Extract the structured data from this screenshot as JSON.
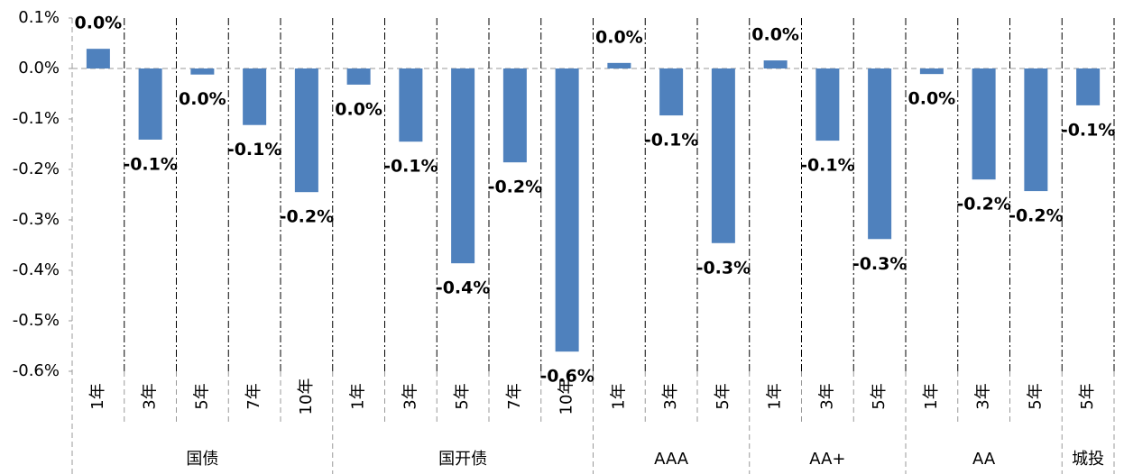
{
  "chart_data": {
    "type": "bar",
    "groups": [
      {
        "name": "国债",
        "categories": [
          "1年",
          "3年",
          "5年",
          "7年",
          "10年"
        ]
      },
      {
        "name": "国开债",
        "categories": [
          "1年",
          "3年",
          "5年",
          "7年",
          "10年"
        ]
      },
      {
        "name": "AAA",
        "categories": [
          "1年",
          "3年",
          "5年"
        ]
      },
      {
        "name": "AA+",
        "categories": [
          "1年",
          "3年",
          "5年"
        ]
      },
      {
        "name": "AA",
        "categories": [
          "1年",
          "3年",
          "5年"
        ]
      },
      {
        "name": "城投",
        "categories": [
          "5年"
        ]
      }
    ],
    "values": [
      0.039,
      -0.141,
      -0.012,
      -0.112,
      -0.245,
      -0.032,
      -0.145,
      -0.386,
      -0.186,
      -0.561,
      0.011,
      -0.093,
      -0.346,
      0.016,
      -0.143,
      -0.338,
      -0.011,
      -0.22,
      -0.243,
      -0.073
    ],
    "value_labels": [
      "0.0%",
      "-0.1%",
      "0.0%",
      "-0.1%",
      "-0.2%",
      "0.0%",
      "-0.1%",
      "-0.4%",
      "-0.2%",
      "-0.6%",
      "0.0%",
      "-0.1%",
      "-0.3%",
      "0.0%",
      "-0.1%",
      "-0.3%",
      "0.0%",
      "-0.2%",
      "-0.2%",
      "-0.1%"
    ],
    "color": "#4f81bd",
    "label_color": "#c00000",
    "ylim": [
      -0.6,
      0.1
    ],
    "yticks": [
      {
        "value": 0.1,
        "label": "0.1%"
      },
      {
        "value": 0.0,
        "label": "0.0%"
      },
      {
        "value": -0.1,
        "label": "-0.1%"
      },
      {
        "value": -0.2,
        "label": "-0.2%"
      },
      {
        "value": -0.3,
        "label": "-0.3%"
      },
      {
        "value": -0.4,
        "label": "-0.4%"
      },
      {
        "value": -0.5,
        "label": "-0.5%"
      },
      {
        "value": -0.6,
        "label": "-0.6%"
      }
    ]
  }
}
